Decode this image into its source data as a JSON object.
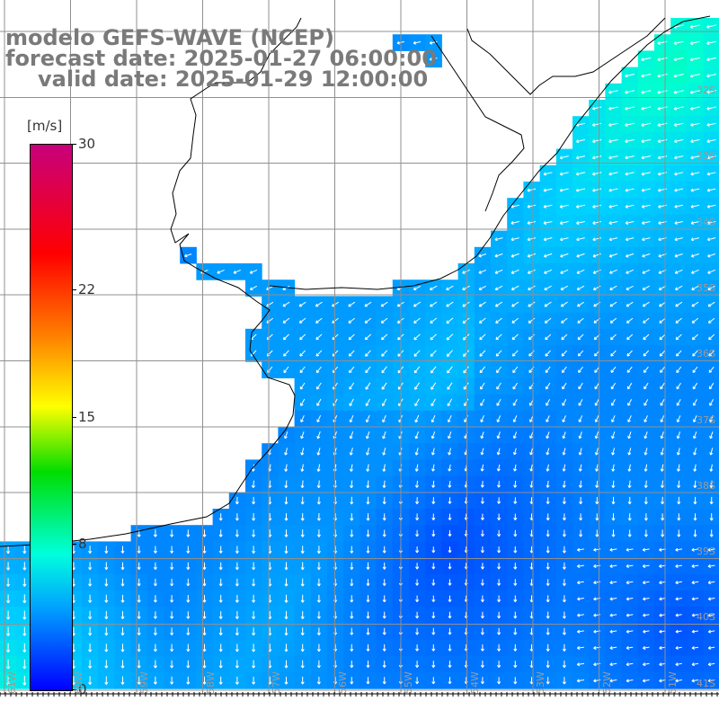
{
  "title": {
    "line1": "modelo GEFS-WAVE (NCEP)",
    "line2": "forecast date: 2025-01-27 06:00:00",
    "line3": "valid date: 2025-01-29 12:00:00"
  },
  "colorbar": {
    "unit": "[m/s]",
    "ticks": [
      {
        "label": "30",
        "value": 30
      },
      {
        "label": "22",
        "value": 22
      },
      {
        "label": "15",
        "value": 15
      },
      {
        "label": "8",
        "value": 8
      },
      {
        "label": "0",
        "value": 0
      }
    ],
    "colors": [
      "#c8007c",
      "#ff0000",
      "#ff7f00",
      "#ffff00",
      "#00dd00",
      "#00ffdd",
      "#00a0ff",
      "#0000ff"
    ]
  },
  "lat_labels": [
    "32S",
    "33S",
    "34S",
    "35S",
    "36S",
    "37S",
    "38S",
    "39S",
    "40S",
    "41S"
  ],
  "lon_labels": [
    "61W",
    "60W",
    "59W",
    "58W",
    "57W",
    "56W",
    "55W",
    "54W",
    "53W",
    "52W",
    "51W"
  ],
  "field": {
    "variable": "wind speed",
    "typical_range_m_s": [
      2,
      9
    ],
    "dominant_direction": "SW-flowing (from NE) in north, S-flowing in south"
  }
}
